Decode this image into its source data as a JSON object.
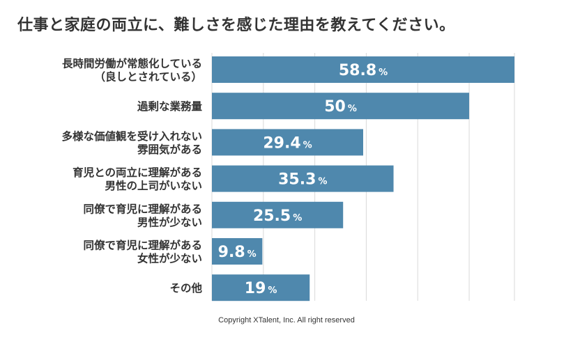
{
  "title": "仕事と家庭の両立に、難しさを感じた理由を教えてください。",
  "copyright": "Copyright XTalent, Inc. All right reserved",
  "colors": {
    "bar": "#4f88ad",
    "grid": "#d9d9d9",
    "label_text": "#333333",
    "value_text": "#ffffff"
  },
  "chart_data": {
    "type": "bar",
    "orientation": "horizontal",
    "title": "仕事と家庭の両立に、難しさを感じた理由を教えてください。",
    "categories": [
      [
        "長時間労働が常態化している",
        "（良しとされている）"
      ],
      [
        "過剰な業務量"
      ],
      [
        "多様な価値観を受け入れない",
        "雰囲気がある"
      ],
      [
        "育児との両立に理解がある",
        "男性の上司がいない"
      ],
      [
        "同僚で育児に理解がある",
        "男性が少ない"
      ],
      [
        "同僚で育児に理解がある",
        "女性が少ない"
      ],
      [
        "その他"
      ]
    ],
    "values": [
      58.8,
      50,
      29.4,
      35.3,
      25.5,
      9.8,
      19
    ],
    "value_labels": [
      "58.8",
      "50",
      "29.4",
      "35.3",
      "25.5",
      "9.8",
      "19"
    ],
    "unit": "%",
    "xlim": [
      0,
      60
    ],
    "grid": true,
    "legend": "none"
  }
}
